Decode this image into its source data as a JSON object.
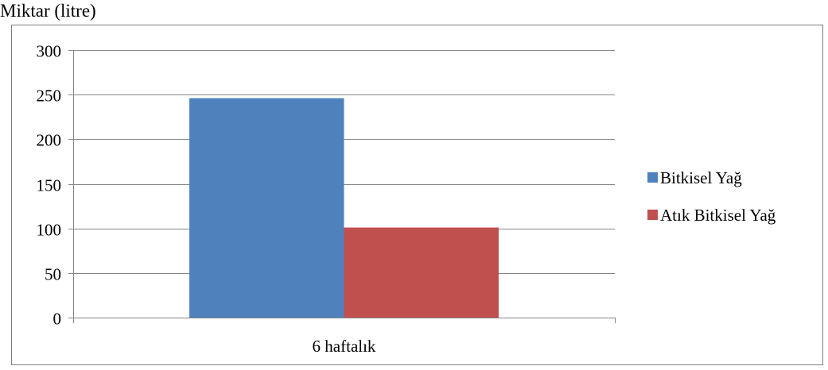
{
  "chart_data": {
    "type": "bar",
    "title": "",
    "ylabel": "Miktar (litre)",
    "xlabel": "",
    "categories": [
      "6 haftalık"
    ],
    "series": [
      {
        "name": "Bitkisel Yağ",
        "values": [
          246
        ],
        "color": "#4f81bd"
      },
      {
        "name": "Atık Bitkisel Yağ",
        "values": [
          101
        ],
        "color": "#c0504d"
      }
    ],
    "ylim": [
      0,
      300
    ],
    "yticks": [
      0,
      50,
      100,
      150,
      200,
      250,
      300
    ],
    "grid": true,
    "legend_position": "right"
  }
}
